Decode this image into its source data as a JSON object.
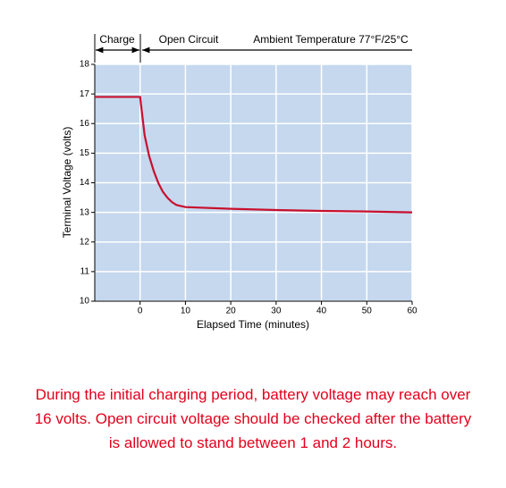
{
  "chart_data": {
    "type": "line",
    "x": [
      -10,
      0,
      1,
      2,
      3,
      4,
      5,
      6,
      7,
      8,
      10,
      20,
      30,
      40,
      50,
      60
    ],
    "series": [
      {
        "color": "#c8102e",
        "values": [
          16.9,
          16.9,
          15.6,
          14.9,
          14.4,
          14.0,
          13.7,
          13.5,
          13.35,
          13.25,
          13.18,
          13.12,
          13.08,
          13.05,
          13.03,
          13.0
        ]
      }
    ],
    "xlim": [
      -10,
      60
    ],
    "xticks": [
      0,
      10,
      20,
      30,
      40,
      50,
      60
    ],
    "ylim": [
      10,
      18
    ],
    "yticks": [
      10,
      11,
      12,
      13,
      14,
      15,
      16,
      17,
      18
    ],
    "xlabel": "Elapsed Time (minutes)",
    "ylabel": "Terminal Voltage (volts)",
    "annotations": [
      "Charge",
      "Open Circuit",
      "Ambient Temperature 77°F/25°C"
    ],
    "grid": true,
    "background": "#c5d8ee"
  },
  "caption": [
    "During the initial charging period, battery voltage may reach over",
    "16 volts. Open circuit voltage should be checked after the battery",
    "is allowed to stand between 1 and 2 hours."
  ]
}
